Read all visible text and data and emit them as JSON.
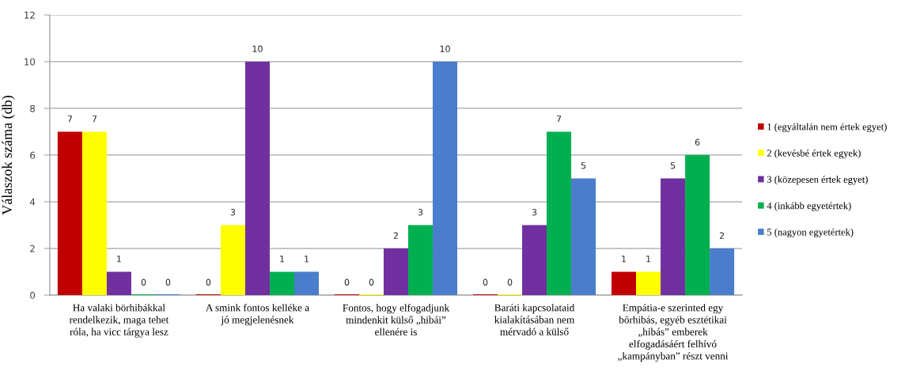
{
  "chart_data": {
    "type": "bar",
    "ylabel": "Válaszok száma (db)",
    "categories": [
      "Ha valaki börhibákkal\nrendelkezik, maga tehet\nróla, ha vicc tárgya lesz",
      "A smink fontos kelléke a\njó megjelenésnek",
      "Fontos, hogy elfogadjunk\nmindenkit külső „hibái”\nellenére is",
      "Baráti kapcsolataid\nkialakításában nem\nmérvadó a külső",
      "Empátia-e szerinted egy\nbőrhibás, egyéb esztétikai\n„hibás” emberek\nelfogadásáért felhívó\n„kampányban” részt venni"
    ],
    "series": [
      {
        "name": "1 (egyáltalán nem értek egyet)",
        "color": "#c00000",
        "values": [
          7,
          0,
          0,
          0,
          1
        ]
      },
      {
        "name": "2 (kevésbé értek egyek)",
        "color": "#ffff00",
        "values": [
          7,
          3,
          0,
          0,
          1
        ]
      },
      {
        "name": "3 (közepesen értek egyet)",
        "color": "#7030a0",
        "values": [
          1,
          10,
          2,
          3,
          5
        ]
      },
      {
        "name": "4 (inkább egyetértek)",
        "color": "#00b050",
        "values": [
          0,
          1,
          3,
          7,
          6
        ]
      },
      {
        "name": "5 (nagyon egyetértek)",
        "color": "#4a7dcb",
        "values": [
          0,
          1,
          10,
          5,
          2
        ]
      }
    ],
    "ylim": [
      0,
      12
    ],
    "yticks": [
      0,
      2,
      4,
      6,
      8,
      10,
      12
    ],
    "grid": "y",
    "legend": "right",
    "data_labels": true
  }
}
